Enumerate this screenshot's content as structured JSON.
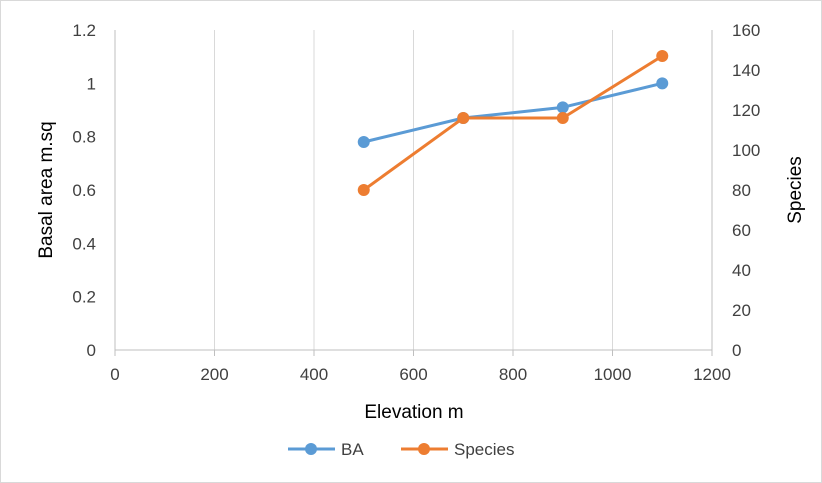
{
  "chart_data": {
    "type": "line",
    "title": "",
    "xlabel": "Elevation m",
    "ylabel": "Basal area m.sq",
    "y2label": "Species",
    "xlim": [
      0,
      1200
    ],
    "ylim": [
      0,
      1.2
    ],
    "y2lim": [
      0,
      160
    ],
    "x_ticks": [
      "0",
      "200",
      "400",
      "600",
      "800",
      "1000",
      "1200"
    ],
    "y_ticks": [
      "0",
      "0.2",
      "0.4",
      "0.6",
      "0.8",
      "1",
      "1.2"
    ],
    "y2_ticks": [
      "0",
      "20",
      "40",
      "60",
      "80",
      "100",
      "120",
      "140",
      "160"
    ],
    "grid": "vertical",
    "legend_position": "bottom",
    "series": [
      {
        "name": "BA",
        "axis": "left",
        "color": "#5b9bd5",
        "x": [
          500,
          700,
          900,
          1100
        ],
        "y": [
          0.78,
          0.87,
          0.91,
          1.0
        ]
      },
      {
        "name": "Species",
        "axis": "right",
        "color": "#ed7d31",
        "x": [
          500,
          700,
          900,
          1100
        ],
        "y": [
          80,
          116,
          116,
          147
        ]
      }
    ]
  }
}
